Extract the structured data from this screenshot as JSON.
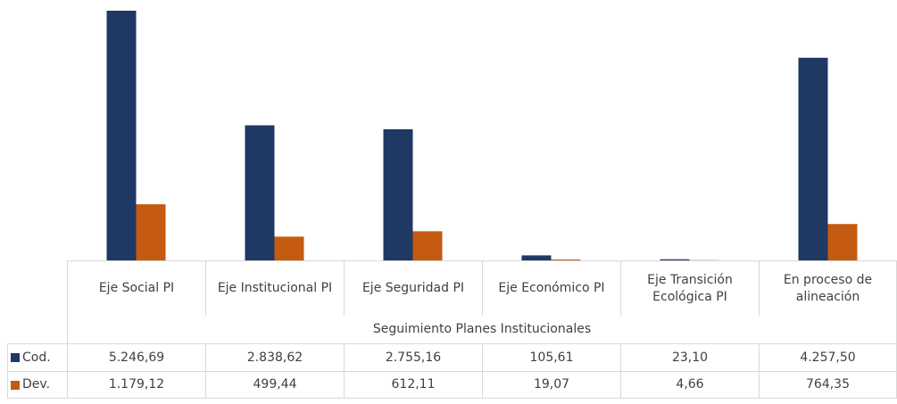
{
  "chart_data": {
    "type": "bar",
    "categories": [
      "Eje Social PI",
      "Eje Institucional PI",
      "Eje Seguridad PI",
      "Eje Económico PI",
      "Eje Transición Ecológica PI",
      "En proceso de alineación"
    ],
    "xlabel": "Seguimiento Planes Institucionales",
    "series": [
      {
        "name": "Cod.",
        "color": "#1f3864",
        "values": [
          5246.69,
          2838.62,
          2755.16,
          105.61,
          23.1,
          4257.5
        ],
        "value_labels": [
          "5.246,69",
          "2.838,62",
          "2.755,16",
          "105,61",
          "23,10",
          "4.257,50"
        ]
      },
      {
        "name": "Dev.",
        "color": "#c55a11",
        "values": [
          1179.12,
          499.44,
          612.11,
          19.07,
          4.66,
          764.35
        ],
        "value_labels": [
          "1.179,12",
          "499,44",
          "612,11",
          "19,07",
          "4,66",
          "764,35"
        ]
      }
    ]
  }
}
